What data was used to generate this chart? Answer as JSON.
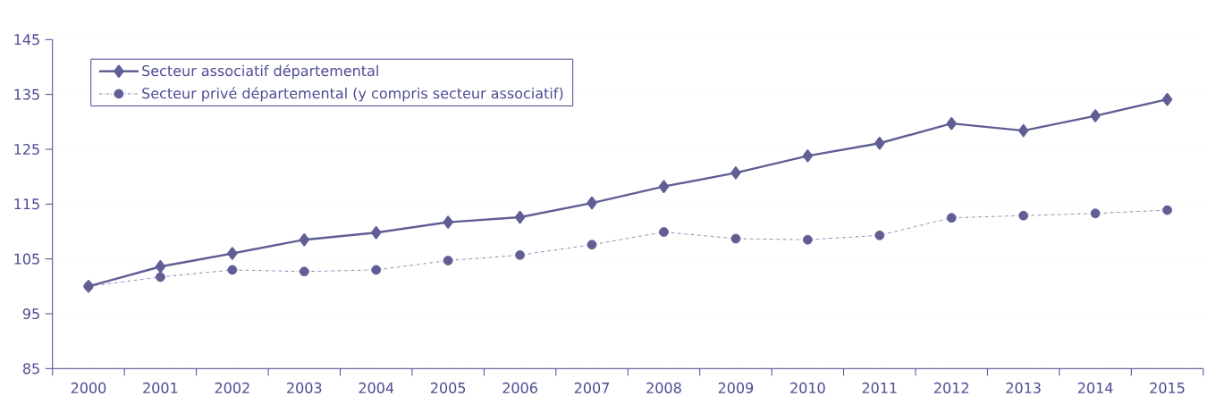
{
  "chart_data": {
    "type": "line",
    "categories": [
      "2000",
      "2001",
      "2002",
      "2003",
      "2004",
      "2005",
      "2006",
      "2007",
      "2008",
      "2009",
      "2010",
      "2011",
      "2012",
      "2013",
      "2014",
      "2015"
    ],
    "series": [
      {
        "name": "Secteur associatif départemental",
        "color": "#5f5f96",
        "marker": "diamond",
        "line_style": "solid",
        "values": [
          100,
          103.6,
          106.0,
          108.5,
          109.8,
          111.7,
          112.6,
          115.2,
          118.2,
          120.7,
          123.8,
          126.1,
          129.7,
          128.4,
          131.1,
          134.1
        ]
      },
      {
        "name": "Secteur privé départemental (y compris secteur associatif)",
        "color": "#5f5f96",
        "marker": "circle",
        "line_style": "dashdot",
        "values": [
          100,
          101.7,
          103.0,
          102.7,
          103.0,
          104.7,
          105.7,
          107.6,
          109.9,
          108.7,
          108.5,
          109.3,
          112.5,
          112.9,
          113.3,
          113.9
        ]
      }
    ],
    "ylim": [
      85,
      145
    ],
    "yticks": [
      85,
      95,
      105,
      115,
      125,
      135,
      145
    ],
    "grid": "y",
    "legend": "top left"
  }
}
